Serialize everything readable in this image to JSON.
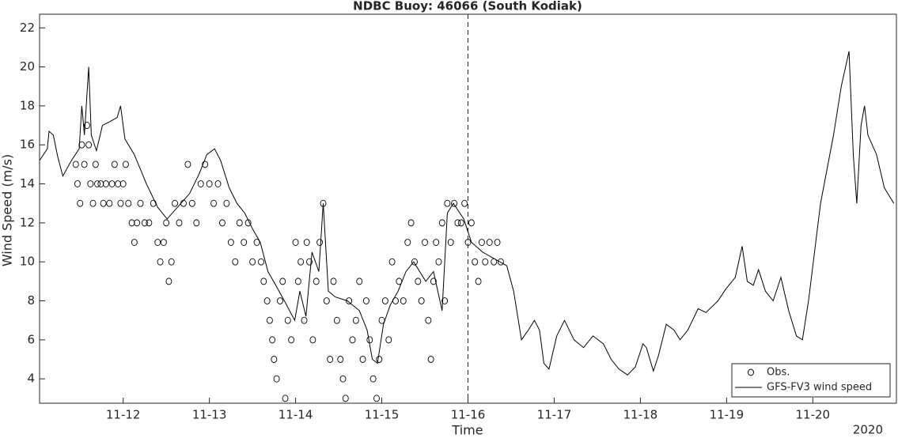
{
  "chart_data": {
    "type": "line",
    "title": "NDBC Buoy: 46066 (South Kodiak)",
    "x_label": "Time",
    "y_label": "Wind Speed (m/s)",
    "annotation": "2020",
    "xlim": [
      11.03,
      20.97
    ],
    "ylim": [
      2.75,
      22.7
    ],
    "xticks": [
      {
        "value": 12,
        "label": "11-12"
      },
      {
        "value": 13,
        "label": "11-13"
      },
      {
        "value": 14,
        "label": "11-14"
      },
      {
        "value": 15,
        "label": "11-15"
      },
      {
        "value": 16,
        "label": "11-16"
      },
      {
        "value": 17,
        "label": "11-17"
      },
      {
        "value": 18,
        "label": "11-18"
      },
      {
        "value": 19,
        "label": "11-19"
      },
      {
        "value": 20,
        "label": "11-20"
      }
    ],
    "yticks": [
      4,
      6,
      8,
      10,
      12,
      14,
      16,
      18,
      20,
      22
    ],
    "vline_x": 16,
    "grid": false,
    "legend": "lower right",
    "series": [
      {
        "name": "Obs.",
        "color": "#000000",
        "mode": "markers",
        "x": [
          11.45,
          11.47,
          11.5,
          11.52,
          11.55,
          11.58,
          11.6,
          11.62,
          11.65,
          11.68,
          11.7,
          11.74,
          11.77,
          11.8,
          11.84,
          11.87,
          11.9,
          11.94,
          11.97,
          12.0,
          12.03,
          12.06,
          12.1,
          12.13,
          12.16,
          12.2,
          12.25,
          12.3,
          12.35,
          12.4,
          12.43,
          12.47,
          12.5,
          12.53,
          12.56,
          12.6,
          12.65,
          12.7,
          12.75,
          12.8,
          12.85,
          12.9,
          12.95,
          13.0,
          13.05,
          13.1,
          13.15,
          13.2,
          13.25,
          13.3,
          13.35,
          13.4,
          13.45,
          13.5,
          13.55,
          13.6,
          13.63,
          13.67,
          13.7,
          13.73,
          13.75,
          13.78,
          13.82,
          13.85,
          13.88,
          13.91,
          13.95,
          14.0,
          14.03,
          14.06,
          14.1,
          14.13,
          14.16,
          14.2,
          14.24,
          14.28,
          14.32,
          14.36,
          14.4,
          14.44,
          14.48,
          14.52,
          14.55,
          14.58,
          14.62,
          14.66,
          14.7,
          14.74,
          14.78,
          14.82,
          14.86,
          14.9,
          14.94,
          14.97,
          15.0,
          15.04,
          15.08,
          15.12,
          15.16,
          15.2,
          15.25,
          15.3,
          15.34,
          15.38,
          15.42,
          15.46,
          15.5,
          15.54,
          15.57,
          15.6,
          15.63,
          15.66,
          15.7,
          15.73,
          15.76,
          15.8,
          15.84,
          15.88,
          15.92,
          15.96,
          16.0,
          16.04,
          16.08,
          16.12,
          16.16,
          16.2,
          16.25,
          16.3,
          16.34,
          16.38
        ],
        "values": [
          15,
          14,
          13,
          16,
          15,
          17,
          16,
          14,
          13,
          15,
          14,
          14,
          13,
          14,
          13,
          14,
          15,
          14,
          13,
          14,
          15,
          13,
          12,
          11,
          12,
          13,
          12,
          12,
          13,
          11,
          10,
          11,
          12,
          9,
          10,
          13,
          12,
          13,
          15,
          13,
          12,
          14,
          15,
          14,
          13,
          14,
          12,
          13,
          11,
          10,
          12,
          11,
          12,
          10,
          11,
          10,
          9,
          8,
          7,
          6,
          5,
          4,
          8,
          9,
          3,
          7,
          6,
          11,
          9,
          10,
          7,
          11,
          10,
          6,
          9,
          11,
          13,
          8,
          5,
          9,
          7,
          5,
          4,
          3,
          8,
          6,
          7,
          9,
          5,
          8,
          6,
          4,
          3,
          5,
          7,
          8,
          6,
          10,
          8,
          9,
          8,
          11,
          12,
          10,
          9,
          8,
          11,
          7,
          5,
          9,
          11,
          10,
          12,
          8,
          13,
          11,
          13,
          12,
          12,
          13,
          11,
          12,
          10,
          9,
          11,
          10,
          11,
          10,
          11,
          10
        ]
      },
      {
        "name": "GFS-FV3 wind speed",
        "color": "#000000",
        "mode": "line",
        "x": [
          11.03,
          11.12,
          11.14,
          11.19,
          11.24,
          11.3,
          11.4,
          11.49,
          11.52,
          11.55,
          11.6,
          11.63,
          11.69,
          11.76,
          11.85,
          11.93,
          11.97,
          12.02,
          12.13,
          12.27,
          12.4,
          12.51,
          12.63,
          12.77,
          12.88,
          12.97,
          13.06,
          13.13,
          13.23,
          13.32,
          13.41,
          13.5,
          13.59,
          13.68,
          13.77,
          13.87,
          13.99,
          14.05,
          14.12,
          14.19,
          14.27,
          14.32,
          14.38,
          14.46,
          14.6,
          14.74,
          14.83,
          14.89,
          14.95,
          15.02,
          15.1,
          15.19,
          15.28,
          15.37,
          15.51,
          15.6,
          15.7,
          15.76,
          15.83,
          15.95,
          16.04,
          16.17,
          16.29,
          16.45,
          16.53,
          16.62,
          16.7,
          16.77,
          16.83,
          16.88,
          16.94,
          17.03,
          17.12,
          17.23,
          17.34,
          17.45,
          17.57,
          17.66,
          17.75,
          17.85,
          17.94,
          18.03,
          18.07,
          18.15,
          18.21,
          18.3,
          18.39,
          18.46,
          18.55,
          18.67,
          18.76,
          18.9,
          18.99,
          19.1,
          19.18,
          19.24,
          19.31,
          19.37,
          19.45,
          19.54,
          19.63,
          19.72,
          19.81,
          19.88,
          19.95,
          20.09,
          20.24,
          20.33,
          20.42,
          20.47,
          20.51,
          20.56,
          20.6,
          20.64,
          20.74,
          20.83,
          20.94
        ],
        "values": [
          15.2,
          15.8,
          16.7,
          16.5,
          15.4,
          14.4,
          15.2,
          15.8,
          18.0,
          16.5,
          20.0,
          16.5,
          15.7,
          17.0,
          17.2,
          17.4,
          18.0,
          16.3,
          15.5,
          14.0,
          12.8,
          12.2,
          12.8,
          13.5,
          14.5,
          15.5,
          15.8,
          15.2,
          13.8,
          13.0,
          12.5,
          11.7,
          11.0,
          9.5,
          8.8,
          8.0,
          7.0,
          8.5,
          7.2,
          10.5,
          9.5,
          13.0,
          8.5,
          8.2,
          8.0,
          7.5,
          6.5,
          5.0,
          4.8,
          6.8,
          7.8,
          8.5,
          9.5,
          10.0,
          9.0,
          9.5,
          7.5,
          12.5,
          13.0,
          12.2,
          11.0,
          10.5,
          10.2,
          9.8,
          8.5,
          6.0,
          6.5,
          7.0,
          6.5,
          4.8,
          4.5,
          6.2,
          7.0,
          6.0,
          5.6,
          6.2,
          5.8,
          5.0,
          4.5,
          4.2,
          4.6,
          5.8,
          5.6,
          4.4,
          5.2,
          6.8,
          6.5,
          6.0,
          6.5,
          7.6,
          7.4,
          8.0,
          8.6,
          9.2,
          10.8,
          9.0,
          8.8,
          9.6,
          8.5,
          8.0,
          9.2,
          7.5,
          6.2,
          6.0,
          8.0,
          13.0,
          16.5,
          19.0,
          20.8,
          15.5,
          13.0,
          17.0,
          18.0,
          16.5,
          15.5,
          13.8,
          13.0
        ]
      }
    ]
  }
}
